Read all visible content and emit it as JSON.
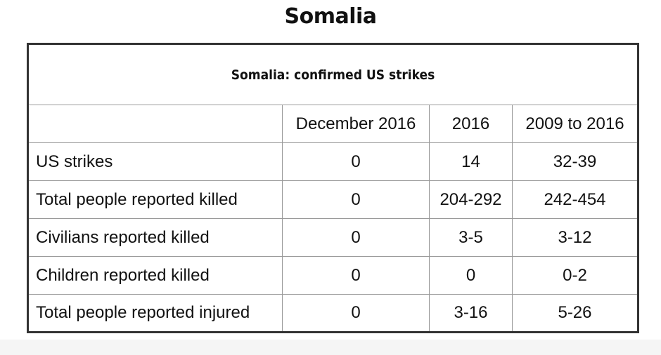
{
  "title": "Somalia",
  "table": {
    "caption": "Somalia: confirmed US strikes",
    "columns": [
      "December 2016",
      "2016",
      "2009 to 2016"
    ],
    "rows": [
      {
        "label": "US strikes",
        "values": [
          0,
          14,
          "32-39"
        ]
      },
      {
        "label": "Total people reported killed",
        "values": [
          0,
          "204-292",
          "242-454"
        ]
      },
      {
        "label": "Civilians reported killed",
        "values": [
          0,
          "3-5",
          "3-12"
        ]
      },
      {
        "label": "Children reported killed",
        "values": [
          0,
          0,
          "0-2"
        ]
      },
      {
        "label": "Total people reported injured",
        "values": [
          0,
          "3-16",
          "5-26"
        ]
      }
    ]
  }
}
